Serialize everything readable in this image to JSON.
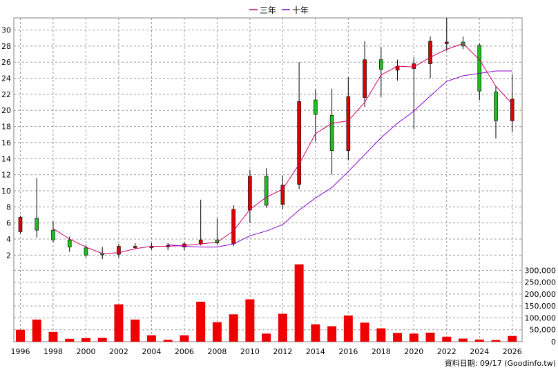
{
  "legend": {
    "items": [
      {
        "label": "三年",
        "color": "#cc0066"
      },
      {
        "label": "十年",
        "color": "#8800cc"
      }
    ]
  },
  "source_label": "資料日期: 09/17  (Goodinfo.tw)",
  "chart_data": {
    "type": "candlestick",
    "colors": {
      "up": "#dd0000",
      "down": "#22bb22",
      "volume": "#ee0000",
      "ma3": "#cc0066",
      "ma10": "#8800cc",
      "grid": "#999999"
    },
    "x_range": [
      1995.6,
      2026.6
    ],
    "x_ticks": [
      1996,
      1998,
      2000,
      2002,
      2004,
      2006,
      2008,
      2010,
      2012,
      2014,
      2016,
      2018,
      2020,
      2022,
      2024,
      2026
    ],
    "price": {
      "ylim": [
        1,
        31.5
      ],
      "y_ticks": [
        2,
        4,
        6,
        8,
        10,
        12,
        14,
        16,
        18,
        20,
        22,
        24,
        26,
        28,
        30
      ]
    },
    "volume": {
      "ylim": [
        0,
        330000
      ],
      "y_ticks": [
        0,
        50000,
        100000,
        150000,
        200000,
        250000,
        300000
      ],
      "y_tick_labels": [
        "0",
        "50,000",
        "100,000",
        "150,000",
        "200,000",
        "250,000",
        "300,000"
      ]
    },
    "candles": [
      {
        "year": 1996,
        "open": 4.9,
        "high": 6.9,
        "low": 4.7,
        "close": 6.7
      },
      {
        "year": 1997,
        "open": 6.6,
        "high": 11.6,
        "low": 4.2,
        "close": 5.1
      },
      {
        "year": 1998,
        "open": 5.1,
        "high": 6.2,
        "low": 3.6,
        "close": 3.9
      },
      {
        "year": 1999,
        "open": 3.9,
        "high": 4.3,
        "low": 2.4,
        "close": 3.0
      },
      {
        "year": 2000,
        "open": 2.9,
        "high": 3.3,
        "low": 1.7,
        "close": 2.0
      },
      {
        "year": 2001,
        "open": 2.2,
        "high": 3.0,
        "low": 1.5,
        "close": 2.1
      },
      {
        "year": 2002,
        "open": 2.1,
        "high": 3.4,
        "low": 1.7,
        "close": 3.1
      },
      {
        "year": 2003,
        "open": 3.0,
        "high": 3.5,
        "low": 2.7,
        "close": 3.1
      },
      {
        "year": 2004,
        "open": 3.0,
        "high": 3.5,
        "low": 2.7,
        "close": 3.1
      },
      {
        "year": 2005,
        "open": 3.1,
        "high": 3.5,
        "low": 2.6,
        "close": 3.2
      },
      {
        "year": 2006,
        "open": 3.0,
        "high": 3.6,
        "low": 2.6,
        "close": 3.4
      },
      {
        "year": 2007,
        "open": 3.4,
        "high": 8.9,
        "low": 3.2,
        "close": 3.9
      },
      {
        "year": 2008,
        "open": 3.9,
        "high": 6.6,
        "low": 3.3,
        "close": 3.5
      },
      {
        "year": 2009,
        "open": 3.4,
        "high": 8.2,
        "low": 3.1,
        "close": 7.7
      },
      {
        "year": 2010,
        "open": 7.6,
        "high": 12.6,
        "low": 6.0,
        "close": 11.8
      },
      {
        "year": 2011,
        "open": 11.8,
        "high": 12.8,
        "low": 7.9,
        "close": 8.2
      },
      {
        "year": 2012,
        "open": 8.3,
        "high": 11.9,
        "low": 7.7,
        "close": 10.7
      },
      {
        "year": 2013,
        "open": 10.8,
        "high": 26.0,
        "low": 10.2,
        "close": 21.1
      },
      {
        "year": 2014,
        "open": 21.3,
        "high": 22.6,
        "low": 16.1,
        "close": 19.5
      },
      {
        "year": 2015,
        "open": 19.4,
        "high": 22.7,
        "low": 12.0,
        "close": 15.0
      },
      {
        "year": 2016,
        "open": 15.0,
        "high": 24.1,
        "low": 13.8,
        "close": 21.7
      },
      {
        "year": 2017,
        "open": 21.6,
        "high": 28.6,
        "low": 20.4,
        "close": 26.3
      },
      {
        "year": 2018,
        "open": 26.3,
        "high": 27.9,
        "low": 21.7,
        "close": 25.1
      },
      {
        "year": 2019,
        "open": 25.0,
        "high": 26.3,
        "low": 23.7,
        "close": 25.5
      },
      {
        "year": 2020,
        "open": 25.2,
        "high": 26.6,
        "low": 17.7,
        "close": 25.8
      },
      {
        "year": 2021,
        "open": 25.8,
        "high": 29.2,
        "low": 24.0,
        "close": 28.6
      },
      {
        "year": 2022,
        "open": 28.3,
        "high": 31.5,
        "low": 27.4,
        "close": 28.5
      },
      {
        "year": 2023,
        "open": 28.5,
        "high": 29.2,
        "low": 27.6,
        "close": 28.0
      },
      {
        "year": 2024,
        "open": 28.1,
        "high": 28.3,
        "low": 21.3,
        "close": 22.4
      },
      {
        "year": 2025,
        "open": 22.3,
        "high": 23.0,
        "low": 16.5,
        "close": 18.7
      },
      {
        "year": 2026,
        "open": 18.7,
        "high": 24.5,
        "low": 17.3,
        "close": 21.4
      }
    ],
    "ma3": [
      [
        1998,
        5.3
      ],
      [
        1999,
        4.0
      ],
      [
        2000,
        3.0
      ],
      [
        2001,
        2.2
      ],
      [
        2002,
        2.3
      ],
      [
        2003,
        2.8
      ],
      [
        2004,
        3.1
      ],
      [
        2005,
        3.1
      ],
      [
        2006,
        3.2
      ],
      [
        2007,
        3.4
      ],
      [
        2008,
        3.6
      ],
      [
        2009,
        5.0
      ],
      [
        2010,
        7.7
      ],
      [
        2011,
        9.2
      ],
      [
        2012,
        10.2
      ],
      [
        2013,
        13.3
      ],
      [
        2014,
        17.1
      ],
      [
        2015,
        18.4
      ],
      [
        2016,
        18.7
      ],
      [
        2017,
        21.0
      ],
      [
        2018,
        24.4
      ],
      [
        2019,
        25.5
      ],
      [
        2020,
        25.4
      ],
      [
        2021,
        26.6
      ],
      [
        2022,
        27.6
      ],
      [
        2023,
        28.3
      ],
      [
        2024,
        26.3
      ],
      [
        2025,
        23.0
      ],
      [
        2026,
        20.8
      ]
    ],
    "ma10": [
      [
        2005,
        3.3
      ],
      [
        2006,
        3.1
      ],
      [
        2007,
        3.0
      ],
      [
        2008,
        3.0
      ],
      [
        2009,
        3.4
      ],
      [
        2010,
        4.4
      ],
      [
        2011,
        5.0
      ],
      [
        2012,
        5.8
      ],
      [
        2013,
        7.6
      ],
      [
        2014,
        9.1
      ],
      [
        2015,
        10.4
      ],
      [
        2016,
        12.4
      ],
      [
        2017,
        14.5
      ],
      [
        2018,
        16.6
      ],
      [
        2019,
        18.4
      ],
      [
        2020,
        19.9
      ],
      [
        2021,
        21.8
      ],
      [
        2022,
        23.6
      ],
      [
        2023,
        24.3
      ],
      [
        2024,
        24.6
      ],
      [
        2025,
        24.9
      ],
      [
        2026,
        24.9
      ]
    ],
    "volumes": [
      {
        "year": 1996,
        "value": 50000
      },
      {
        "year": 1997,
        "value": 93000
      },
      {
        "year": 1998,
        "value": 41000
      },
      {
        "year": 1999,
        "value": 12000
      },
      {
        "year": 2000,
        "value": 15000
      },
      {
        "year": 2001,
        "value": 16000
      },
      {
        "year": 2002,
        "value": 157000
      },
      {
        "year": 2003,
        "value": 93000
      },
      {
        "year": 2004,
        "value": 27000
      },
      {
        "year": 2005,
        "value": 8000
      },
      {
        "year": 2006,
        "value": 27000
      },
      {
        "year": 2007,
        "value": 168000
      },
      {
        "year": 2008,
        "value": 82000
      },
      {
        "year": 2009,
        "value": 115000
      },
      {
        "year": 2010,
        "value": 178000
      },
      {
        "year": 2011,
        "value": 34000
      },
      {
        "year": 2012,
        "value": 117000
      },
      {
        "year": 2013,
        "value": 325000
      },
      {
        "year": 2014,
        "value": 73000
      },
      {
        "year": 2015,
        "value": 65000
      },
      {
        "year": 2016,
        "value": 110000
      },
      {
        "year": 2017,
        "value": 80000
      },
      {
        "year": 2018,
        "value": 56000
      },
      {
        "year": 2019,
        "value": 37000
      },
      {
        "year": 2020,
        "value": 34000
      },
      {
        "year": 2021,
        "value": 38000
      },
      {
        "year": 2022,
        "value": 21000
      },
      {
        "year": 2023,
        "value": 13000
      },
      {
        "year": 2024,
        "value": 9000
      },
      {
        "year": 2025,
        "value": 7000
      },
      {
        "year": 2026,
        "value": 24000
      }
    ]
  }
}
